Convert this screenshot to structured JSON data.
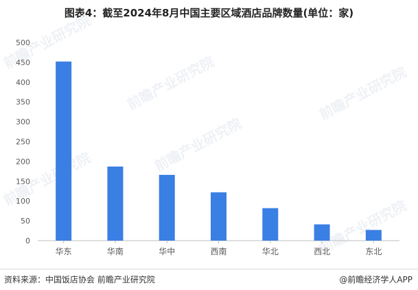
{
  "title": "图表4：截至2024年8月中国主要区域酒店品牌数量(单位：家)",
  "footer": {
    "source": "资料来源：中国饭店协会 前瞻产业研究院",
    "brand": "@前瞻经济学人APP"
  },
  "watermark": "前瞻产业研究院",
  "colors": {
    "bar": "#3a7fe3",
    "axis": "#bfbfbf",
    "tick_text": "#595959"
  },
  "chart_data": {
    "type": "bar",
    "title": "图表4：截至2024年8月中国主要区域酒店品牌数量(单位：家)",
    "xlabel": "",
    "ylabel": "",
    "categories": [
      "华东",
      "华南",
      "华中",
      "西南",
      "华北",
      "西北",
      "东北"
    ],
    "values": [
      452,
      187,
      166,
      122,
      82,
      41,
      27
    ],
    "ylim": [
      0,
      500
    ],
    "yticks": [
      0,
      50,
      100,
      150,
      200,
      250,
      300,
      350,
      400,
      450,
      500
    ],
    "grid": false,
    "legend": "none"
  }
}
